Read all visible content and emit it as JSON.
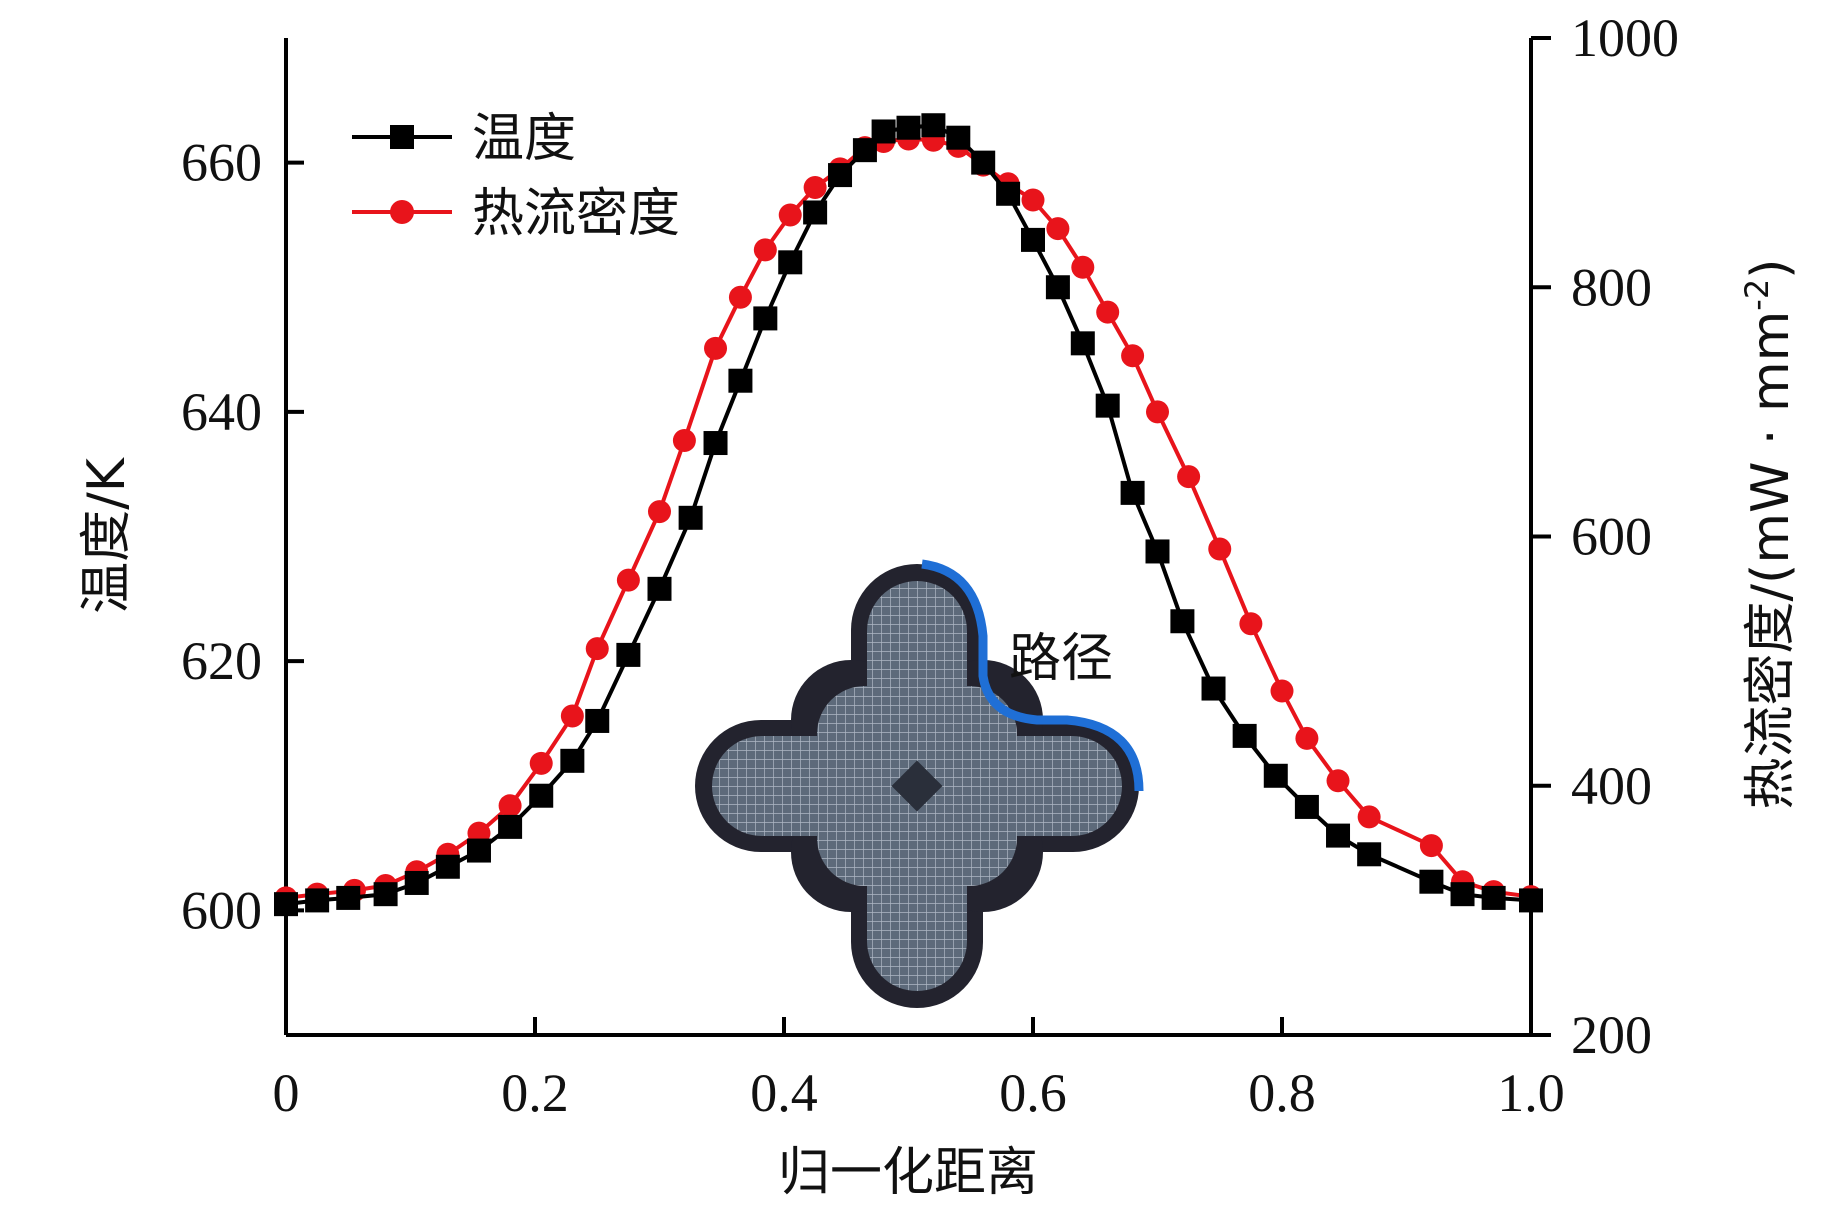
{
  "chart_data": {
    "type": "line",
    "xlabel": "归一化距离",
    "ylabel_left": "温度/K",
    "ylabel_right": "热流密度/(mW · mm",
    "ylabel_right_sup": "-2",
    "ylabel_right_close": ")",
    "xlim": [
      0,
      1.0
    ],
    "ylim_left": [
      590,
      670
    ],
    "ylim_right": [
      200,
      1000
    ],
    "x_ticks": [
      "0",
      "0.2",
      "0.4",
      "0.6",
      "0.8",
      "1.0"
    ],
    "y_left_ticks": [
      "600",
      "620",
      "640",
      "660"
    ],
    "y_right_ticks": [
      "200",
      "400",
      "600",
      "800",
      "1000"
    ],
    "legend_position": "top-left",
    "inset_label": "路径",
    "series": [
      {
        "name": "温度",
        "axis": "left",
        "color": "#000000",
        "marker": "square",
        "x": [
          0.0,
          0.025,
          0.05,
          0.08,
          0.105,
          0.13,
          0.155,
          0.18,
          0.205,
          0.23,
          0.25,
          0.275,
          0.3,
          0.325,
          0.345,
          0.365,
          0.385,
          0.405,
          0.425,
          0.445,
          0.465,
          0.48,
          0.5,
          0.52,
          0.54,
          0.56,
          0.58,
          0.6,
          0.62,
          0.64,
          0.66,
          0.68,
          0.7,
          0.72,
          0.745,
          0.77,
          0.795,
          0.82,
          0.845,
          0.87,
          0.92,
          0.945,
          0.97,
          1.0
        ],
        "values": [
          600.5,
          600.8,
          601.0,
          601.3,
          602.2,
          603.5,
          604.8,
          606.7,
          609.2,
          612.0,
          615.2,
          620.5,
          625.8,
          631.5,
          637.5,
          642.5,
          647.5,
          652.0,
          656.0,
          659.0,
          661.0,
          662.5,
          662.8,
          663.0,
          662.0,
          660.0,
          657.5,
          653.8,
          650.0,
          645.5,
          640.5,
          633.5,
          628.8,
          623.2,
          617.8,
          614.0,
          610.8,
          608.3,
          606.0,
          604.5,
          602.3,
          601.3,
          601.0,
          600.8
        ]
      },
      {
        "name": "热流密度",
        "axis": "right",
        "color": "#e8141b",
        "marker": "circle",
        "x": [
          0.0,
          0.025,
          0.055,
          0.08,
          0.105,
          0.13,
          0.155,
          0.18,
          0.205,
          0.23,
          0.25,
          0.275,
          0.3,
          0.32,
          0.345,
          0.365,
          0.385,
          0.405,
          0.425,
          0.445,
          0.465,
          0.48,
          0.5,
          0.52,
          0.54,
          0.56,
          0.58,
          0.6,
          0.62,
          0.64,
          0.66,
          0.68,
          0.7,
          0.725,
          0.75,
          0.775,
          0.8,
          0.82,
          0.845,
          0.87,
          0.92,
          0.945,
          0.97,
          1.0
        ],
        "values": [
          310,
          313,
          316,
          320,
          331,
          345,
          362,
          384,
          418,
          456,
          510,
          565,
          620,
          677,
          751,
          792,
          830,
          858,
          880,
          895,
          912,
          917,
          919,
          918,
          913,
          898,
          883,
          870,
          847,
          816,
          780,
          745,
          700,
          648,
          590,
          530,
          476,
          438,
          404,
          375,
          352,
          323,
          315,
          311
        ]
      }
    ]
  }
}
